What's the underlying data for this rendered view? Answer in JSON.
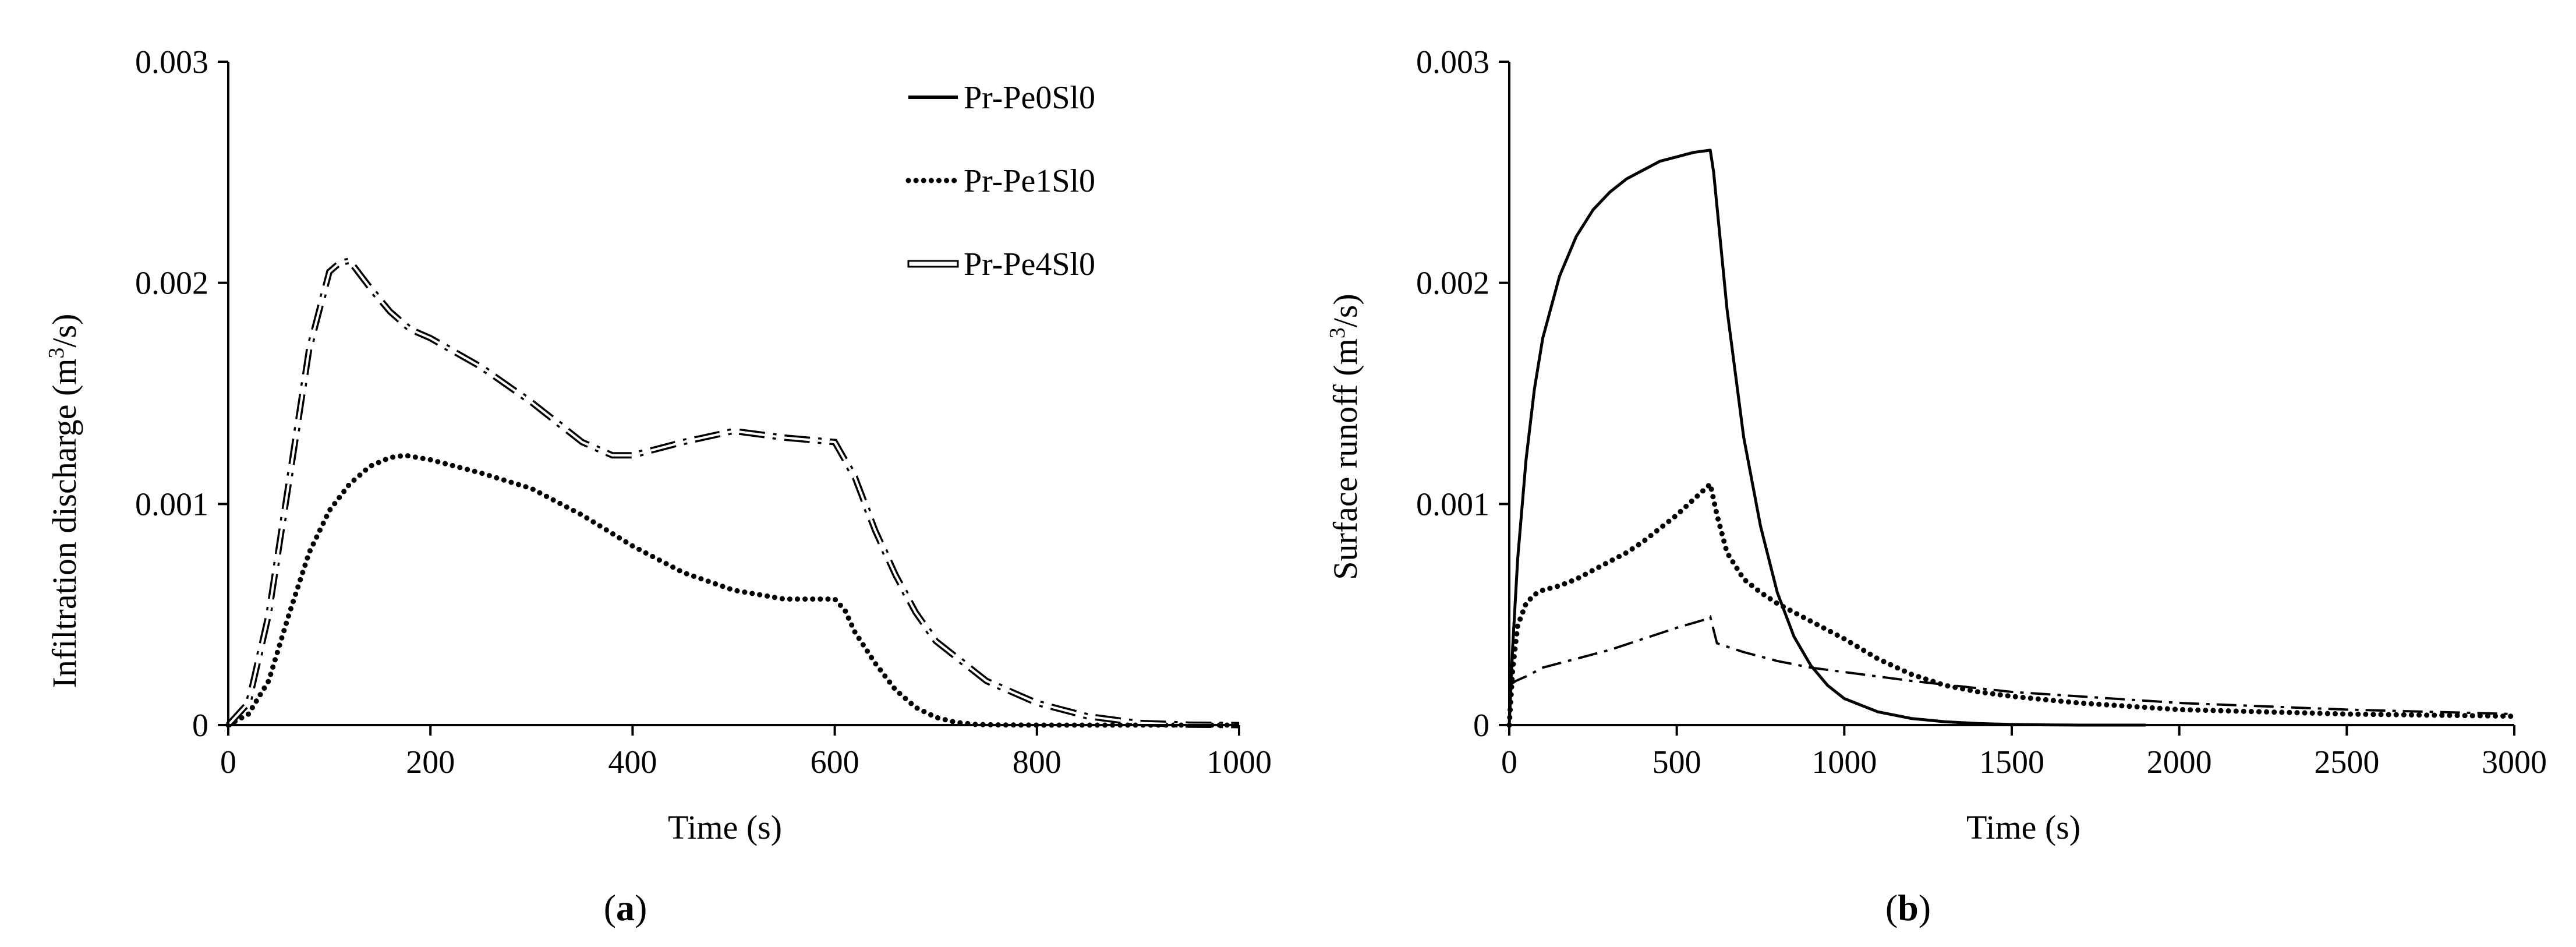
{
  "figure": {
    "panel_a_caption": {
      "open": "(",
      "letter": "a",
      "close": ")"
    },
    "panel_b_caption": {
      "open": "(",
      "letter": "b",
      "close": ")"
    }
  },
  "legend": {
    "entries": [
      "Pr-Pe0Sl0",
      "Pr-Pe1Sl0",
      "Pr-Pe4Sl0"
    ]
  },
  "chart_data": [
    {
      "id": "a",
      "type": "line",
      "title": "",
      "xlabel": "Time (s)",
      "ylabel": {
        "prefix": "Infiltration discharge (m",
        "sup": "3",
        "suffix": "/s)"
      },
      "xlim": [
        0,
        1000
      ],
      "ylim": [
        0,
        0.003
      ],
      "xticks": [
        0,
        200,
        400,
        600,
        800,
        1000
      ],
      "xtick_labels": [
        "0",
        "200",
        "400",
        "600",
        "800",
        "1000"
      ],
      "yticks": [
        0,
        0.001,
        0.002,
        0.003
      ],
      "ytick_labels": [
        "0",
        "0.001",
        "0.002",
        "0.003"
      ],
      "grid": false,
      "legend_position": "top-right",
      "series": [
        {
          "name": "Pr-Pe1Sl0",
          "style": "dotted",
          "x": [
            0,
            20,
            40,
            60,
            80,
            100,
            120,
            140,
            160,
            175,
            200,
            250,
            300,
            350,
            400,
            450,
            500,
            550,
            600,
            610,
            620,
            640,
            660,
            680,
            700,
            720,
            740,
            760,
            800,
            850,
            900,
            950,
            1000
          ],
          "y": [
            0,
            5e-05,
            0.0002,
            0.0005,
            0.00078,
            0.00097,
            0.00109,
            0.00117,
            0.00121,
            0.00122,
            0.0012,
            0.00114,
            0.00107,
            0.00095,
            0.00081,
            0.00069,
            0.00061,
            0.00057,
            0.00057,
            0.00052,
            0.00042,
            0.00028,
            0.00016,
            8e-05,
            3.5e-05,
            1.2e-05,
            3e-06,
            1e-06,
            0,
            0,
            0,
            0,
            0
          ]
        },
        {
          "name": "Pr-Pe4Sl0",
          "style": "dash-dot",
          "x": [
            0,
            20,
            40,
            60,
            80,
            100,
            110,
            120,
            140,
            160,
            180,
            200,
            250,
            300,
            350,
            380,
            400,
            450,
            500,
            550,
            600,
            620,
            640,
            660,
            680,
            700,
            750,
            800,
            850,
            900,
            950,
            1000
          ],
          "y": [
            0,
            0.0001,
            0.0005,
            0.0011,
            0.0017,
            0.00205,
            0.00209,
            0.0021,
            0.00198,
            0.00187,
            0.00179,
            0.00175,
            0.00162,
            0.00146,
            0.00128,
            0.00122,
            0.00122,
            0.00128,
            0.00133,
            0.0013,
            0.00128,
            0.00112,
            0.00088,
            0.00068,
            0.00051,
            0.00038,
            0.0002,
            0.0001,
            4e-05,
            1e-05,
            2e-06,
            0
          ]
        }
      ]
    },
    {
      "id": "b",
      "type": "line",
      "title": "",
      "xlabel": "Time (s)",
      "ylabel": {
        "prefix": "Surface runoff (m",
        "sup": "3",
        "suffix": "/s)"
      },
      "xlim": [
        0,
        3000
      ],
      "ylim": [
        0,
        0.003
      ],
      "xticks": [
        0,
        500,
        1000,
        1500,
        2000,
        2500,
        3000
      ],
      "xtick_labels": [
        "0",
        "500",
        "1000",
        "1500",
        "2000",
        "2500",
        "3000"
      ],
      "yticks": [
        0,
        0.001,
        0.002,
        0.003
      ],
      "ytick_labels": [
        "0",
        "0.001",
        "0.002",
        "0.003"
      ],
      "grid": false,
      "series": [
        {
          "name": "Pr-Pe0Sl0",
          "style": "solid",
          "x": [
            0,
            10,
            25,
            50,
            75,
            100,
            150,
            200,
            250,
            300,
            350,
            400,
            450,
            500,
            550,
            600,
            610,
            650,
            700,
            750,
            800,
            850,
            900,
            950,
            1000,
            1100,
            1200,
            1300,
            1400,
            1500,
            1600,
            1700,
            1800,
            1900
          ],
          "y": [
            0,
            0.00035,
            0.00075,
            0.0012,
            0.00152,
            0.00175,
            0.00203,
            0.00221,
            0.00233,
            0.00241,
            0.00247,
            0.00251,
            0.00255,
            0.00257,
            0.00259,
            0.0026,
            0.0025,
            0.00188,
            0.0013,
            0.0009,
            0.0006,
            0.0004,
            0.00027,
            0.00018,
            0.00012,
            6e-05,
            3e-05,
            1.5e-05,
            7e-06,
            3e-06,
            1e-06,
            0,
            0,
            0
          ]
        },
        {
          "name": "Pr-Pe1Sl0",
          "style": "dotted",
          "x": [
            0,
            10,
            25,
            50,
            75,
            100,
            150,
            200,
            250,
            300,
            350,
            400,
            450,
            500,
            550,
            600,
            620,
            650,
            700,
            750,
            800,
            900,
            1000,
            1100,
            1200,
            1300,
            1400,
            1500,
            1700,
            2000,
            2500,
            3000
          ],
          "y": [
            0,
            0.00025,
            0.00045,
            0.00055,
            0.00059,
            0.00061,
            0.00063,
            0.00066,
            0.0007,
            0.00074,
            0.00078,
            0.00083,
            0.00089,
            0.00095,
            0.00102,
            0.00109,
            0.00095,
            0.00078,
            0.00066,
            0.0006,
            0.00055,
            0.00047,
            0.00039,
            0.0003,
            0.00023,
            0.00018,
            0.00015,
            0.00013,
            0.0001,
            7e-05,
            5e-05,
            4e-05
          ]
        },
        {
          "name": "Pr-Pe4Sl0",
          "style": "dash-dot",
          "x": [
            0,
            20,
            50,
            100,
            150,
            200,
            300,
            400,
            500,
            590,
            600,
            620,
            700,
            800,
            900,
            1000,
            1200,
            1500,
            2000,
            2500,
            3000
          ],
          "y": [
            0.00018,
            0.0002,
            0.00022,
            0.00026,
            0.00028,
            0.0003,
            0.00034,
            0.00039,
            0.00044,
            0.00048,
            0.00049,
            0.00037,
            0.00033,
            0.00029,
            0.00026,
            0.00024,
            0.0002,
            0.00015,
            0.0001,
            7e-05,
            5e-05
          ]
        }
      ]
    }
  ]
}
